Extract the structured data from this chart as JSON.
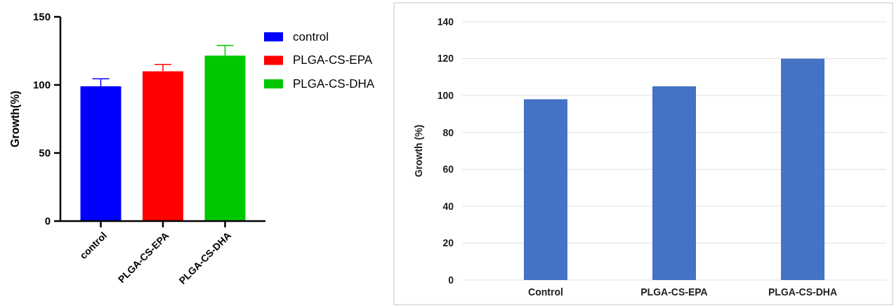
{
  "chart_data": [
    {
      "type": "bar",
      "ylabel": "Growth(%)",
      "categories": [
        "control",
        "PLGA-CS-EPA",
        "PLGA-CS-DHA"
      ],
      "stacked": true,
      "series": [
        {
          "name": "control",
          "color": "#0000ff",
          "values": [
            99,
            null,
            null
          ],
          "errors": [
            [
              99,
              104.5
            ],
            null,
            null
          ]
        },
        {
          "name": "PLGA-CS-EPA",
          "color": "#ff0000",
          "values": [
            null,
            110,
            null
          ],
          "errors": [
            null,
            [
              110,
              115
            ],
            null
          ]
        },
        {
          "name": "PLGA-CS-DHA",
          "color": "#00c800",
          "values": [
            null,
            null,
            121.5
          ],
          "errors": [
            null,
            null,
            [
              121.5,
              129
            ]
          ]
        }
      ],
      "ylim": [
        0,
        150
      ],
      "yticks": [
        0,
        50,
        100,
        150
      ],
      "legend": "top right",
      "grid": false
    },
    {
      "type": "bar",
      "ylabel": "Growth (%)",
      "categories": [
        "Control",
        "PLGA-CS-EPA",
        "PLGA-CS-DHA"
      ],
      "values": [
        98,
        105,
        120
      ],
      "color": "#4472c4",
      "ylim": [
        0,
        140
      ],
      "yticks": [
        0,
        20,
        40,
        60,
        80,
        100,
        120,
        140
      ],
      "grid": "y"
    }
  ]
}
